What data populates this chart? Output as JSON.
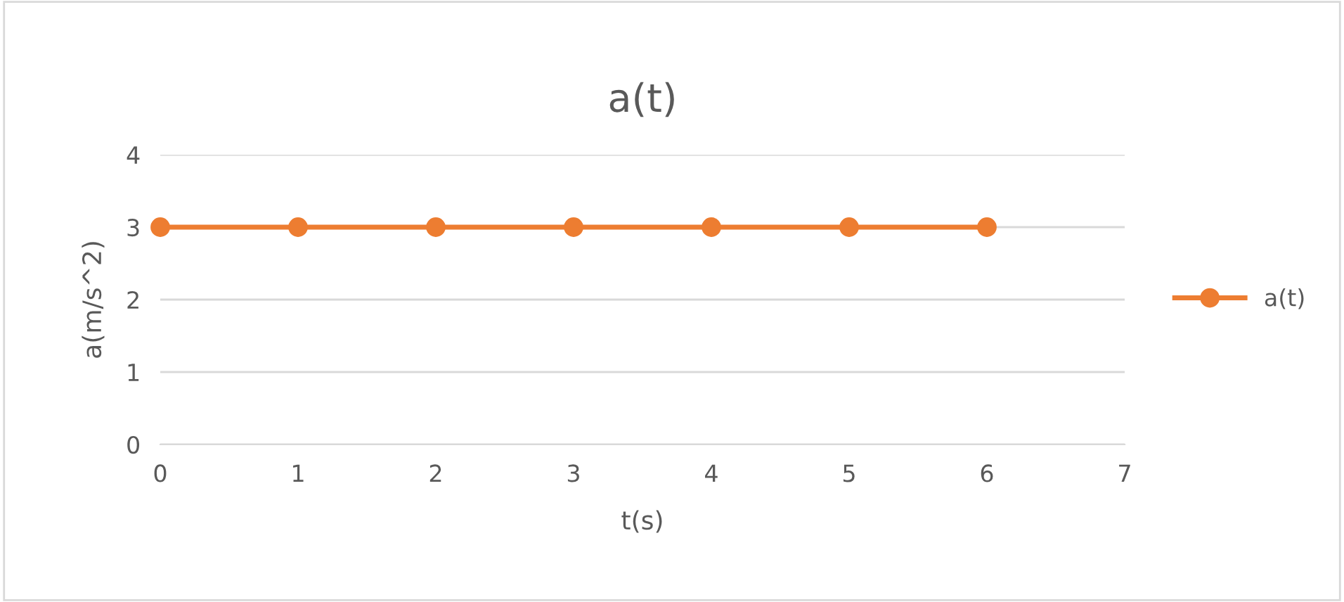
{
  "chart_data": {
    "type": "line",
    "title": "a(t)",
    "xlabel": "t(s)",
    "ylabel": "a(m/s^2)",
    "x": [
      0,
      1,
      2,
      3,
      4,
      5,
      6
    ],
    "series": [
      {
        "name": "a(t)",
        "color": "#ed7d31",
        "values": [
          3,
          3,
          3,
          3,
          3,
          3,
          3
        ]
      }
    ],
    "xlim": [
      0,
      7
    ],
    "xticks": [
      0,
      1,
      2,
      3,
      4,
      5,
      6,
      7
    ],
    "ylim": [
      0,
      4
    ],
    "yticks": [
      0,
      1,
      2,
      3,
      4
    ],
    "grid": "y",
    "legend": "right",
    "marker": "circle",
    "line_style": "solid"
  }
}
